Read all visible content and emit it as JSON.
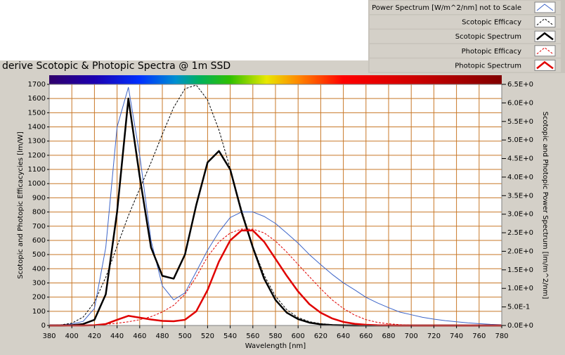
{
  "chart_data": {
    "type": "line",
    "title": "derive Scotopic & Photopic Spectra @ 1m SSD",
    "x_label": "Wavelength [nm]",
    "y_label": "Scotopic and Photopic Efficacycies [lm/W]",
    "y2_label": "Scotopic and Photopic Power Spectrum [lm/m^2/nm]",
    "x": [
      380,
      390,
      400,
      410,
      420,
      430,
      440,
      450,
      460,
      470,
      480,
      490,
      500,
      510,
      520,
      530,
      540,
      550,
      560,
      570,
      580,
      590,
      600,
      610,
      620,
      630,
      640,
      650,
      660,
      670,
      680,
      690,
      700,
      710,
      720,
      730,
      740,
      750,
      760,
      770,
      780
    ],
    "xlim": [
      380,
      780
    ],
    "xticks": [
      380,
      400,
      420,
      440,
      460,
      480,
      500,
      520,
      540,
      560,
      580,
      600,
      620,
      640,
      660,
      680,
      700,
      720,
      740,
      760,
      780
    ],
    "ylim": [
      0,
      1700
    ],
    "yticks": [
      0,
      100,
      200,
      300,
      400,
      500,
      600,
      700,
      800,
      900,
      1000,
      1100,
      1200,
      1300,
      1400,
      1500,
      1600,
      1700
    ],
    "y2lim": [
      0,
      6.5
    ],
    "y2ticks": [
      {
        "value": 0,
        "label": "0.0E+0"
      },
      {
        "value": 0.5,
        "label": "5.0E-1"
      },
      {
        "value": 1,
        "label": "1.0E+0"
      },
      {
        "value": 1.5,
        "label": "1.5E+0"
      },
      {
        "value": 2,
        "label": "2.0E+0"
      },
      {
        "value": 2.5,
        "label": "2.5E+0"
      },
      {
        "value": 3,
        "label": "3.0E+0"
      },
      {
        "value": 3.5,
        "label": "3.5E+0"
      },
      {
        "value": 4,
        "label": "4.0E+0"
      },
      {
        "value": 4.5,
        "label": "4.5E+0"
      },
      {
        "value": 5,
        "label": "5.0E+0"
      },
      {
        "value": 5.5,
        "label": "5.5E+0"
      },
      {
        "value": 6,
        "label": "6.0E+0"
      },
      {
        "value": 6.5,
        "label": "6.5E+0"
      }
    ],
    "grid": true,
    "legend_position": "top-right",
    "series": [
      {
        "name": "Power Spectrum [W/m^2/nm] not to Scale",
        "color": "#3c64c8",
        "axis": "y2",
        "dashed": false,
        "width": 1,
        "values": [
          0.02,
          0.02,
          0.04,
          0.11,
          0.46,
          2.1,
          5.35,
          6.42,
          4.59,
          2.29,
          1.07,
          0.69,
          0.88,
          1.45,
          2.03,
          2.52,
          2.91,
          3.06,
          3.06,
          2.94,
          2.75,
          2.49,
          2.22,
          1.91,
          1.64,
          1.38,
          1.15,
          0.96,
          0.76,
          0.61,
          0.48,
          0.36,
          0.29,
          0.22,
          0.17,
          0.13,
          0.1,
          0.07,
          0.05,
          0.03,
          0.02
        ]
      },
      {
        "name": "Scotopic Efficacy",
        "color": "#000000",
        "dashed": true,
        "width": 1,
        "values": [
          1,
          4,
          16,
          59,
          164,
          340,
          558,
          774,
          964,
          1149,
          1348,
          1537,
          1669,
          1695,
          1590,
          1379,
          1105,
          818,
          559,
          354,
          206,
          111,
          56,
          27,
          13,
          6,
          2,
          1,
          0,
          0,
          0,
          0,
          0,
          0,
          0,
          0,
          0,
          0,
          0,
          0,
          0
        ]
      },
      {
        "name": "Scotopic Spectrum",
        "color": "#000000",
        "dashed": false,
        "width": 2.5,
        "values": [
          0,
          0,
          2,
          10,
          40,
          220,
          800,
          1600,
          1050,
          550,
          350,
          330,
          500,
          850,
          1150,
          1230,
          1100,
          800,
          550,
          330,
          180,
          90,
          45,
          20,
          8,
          3,
          1,
          0,
          0,
          0,
          0,
          0,
          0,
          0,
          0,
          0,
          0,
          0,
          0,
          0,
          0
        ]
      },
      {
        "name": "Photopic Efficacy",
        "color": "#e00000",
        "dashed": true,
        "width": 1,
        "values": [
          0,
          0,
          0,
          1,
          3,
          8,
          16,
          26,
          41,
          62,
          95,
          142,
          220,
          343,
          485,
          588,
          652,
          680,
          679,
          653,
          595,
          517,
          430,
          344,
          259,
          181,
          120,
          73,
          41,
          22,
          12,
          6,
          3,
          1,
          1,
          0,
          0,
          0,
          0,
          0,
          0
        ]
      },
      {
        "name": "Photopic Spectrum",
        "color": "#e00000",
        "dashed": false,
        "width": 2.5,
        "values": [
          0,
          0,
          0,
          0,
          2,
          10,
          40,
          68,
          55,
          42,
          32,
          30,
          40,
          100,
          250,
          450,
          600,
          670,
          670,
          590,
          470,
          350,
          240,
          150,
          90,
          50,
          25,
          12,
          5,
          2,
          1,
          0,
          0,
          0,
          0,
          0,
          0,
          0,
          0,
          0,
          0
        ]
      }
    ]
  }
}
